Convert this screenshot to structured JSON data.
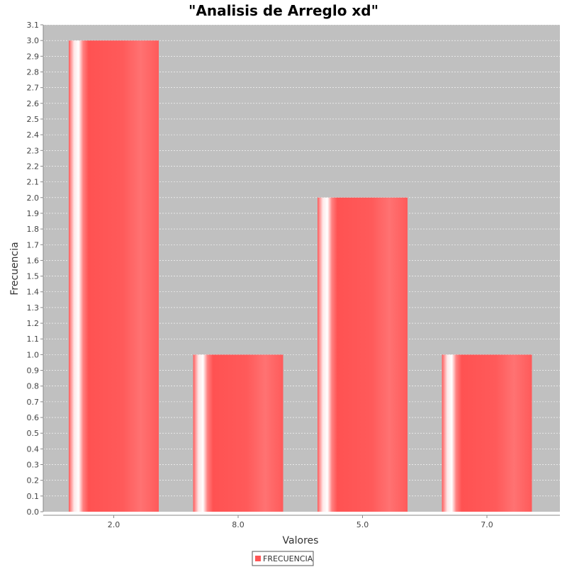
{
  "chart_data": {
    "type": "bar",
    "title": "\"Analisis de Arreglo xd\"",
    "xlabel": "Valores",
    "ylabel": "Frecuencia",
    "categories": [
      "2.0",
      "8.0",
      "5.0",
      "7.0"
    ],
    "series": [
      {
        "name": "FRECUENCIA",
        "values": [
          3.0,
          1.0,
          2.0,
          1.0
        ]
      }
    ],
    "ylim": [
      0.0,
      3.1
    ],
    "y_ticks": [
      "0.0",
      "0.1",
      "0.2",
      "0.3",
      "0.4",
      "0.5",
      "0.6",
      "0.7",
      "0.8",
      "0.9",
      "1.0",
      "1.1",
      "1.2",
      "1.3",
      "1.4",
      "1.5",
      "1.6",
      "1.7",
      "1.8",
      "1.9",
      "2.0",
      "2.1",
      "2.2",
      "2.3",
      "2.4",
      "2.5",
      "2.6",
      "2.7",
      "2.8",
      "2.9",
      "3.0",
      "3.1"
    ],
    "grid": true,
    "legend_position": "bottom",
    "colors": {
      "bar": "#ff5555",
      "plot_background": "#c0c0c0",
      "gridline": "#ffffff"
    }
  }
}
